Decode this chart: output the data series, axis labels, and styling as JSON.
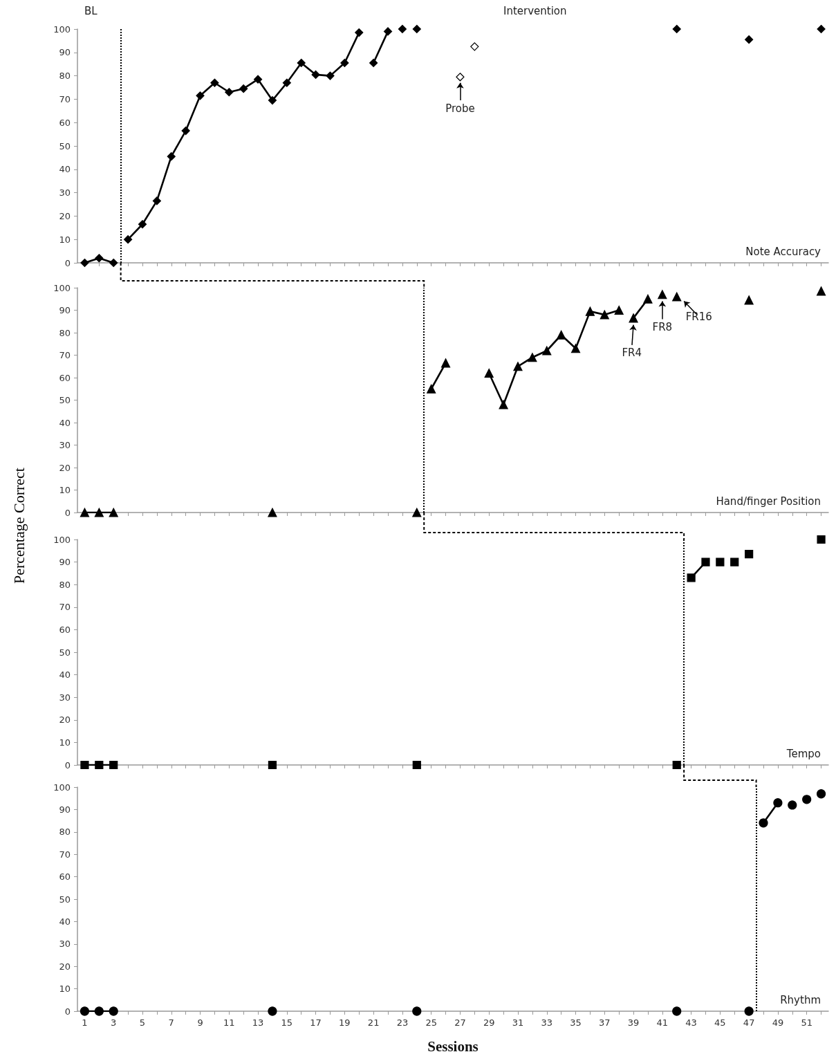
{
  "chart_data": [
    {
      "type": "line",
      "title": "Note Accuracy",
      "marker": "diamond",
      "tick_labels": "y",
      "annotations": [
        "BL",
        "Intervention",
        {
          "text": "Probe",
          "x": 27,
          "y": 79.5
        }
      ],
      "xlim": [
        0.5,
        52.5
      ],
      "ylim": [
        0,
        100
      ],
      "yticks": [
        0,
        10,
        20,
        30,
        40,
        50,
        60,
        70,
        80,
        90,
        100
      ],
      "xticks": [
        1,
        {
          "value": 2,
          "label": null
        },
        3,
        {
          "value": 4,
          "label": null
        },
        5,
        {
          "value": 6,
          "label": null
        },
        7,
        {
          "value": 8,
          "label": null
        },
        9,
        {
          "value": 10,
          "label": null
        },
        11,
        {
          "value": 12,
          "label": null
        },
        13,
        {
          "value": 14,
          "label": null
        },
        15,
        {
          "value": 16,
          "label": null
        },
        17,
        {
          "value": 18,
          "label": null
        },
        19,
        {
          "value": 20,
          "label": null
        },
        21,
        {
          "value": 22,
          "label": null
        },
        23,
        {
          "value": 24,
          "label": null
        },
        25,
        {
          "value": 26,
          "label": null
        },
        27,
        {
          "value": 28,
          "label": null
        },
        29,
        {
          "value": 30,
          "label": null
        },
        31,
        {
          "value": 32,
          "label": null
        },
        33,
        {
          "value": 34,
          "label": null
        },
        35,
        {
          "value": 36,
          "label": null
        },
        37,
        {
          "value": 38,
          "label": null
        },
        39,
        {
          "value": 40,
          "label": null
        },
        41,
        {
          "value": 42,
          "label": null
        },
        43,
        {
          "value": 44,
          "label": null
        },
        45,
        {
          "value": 46,
          "label": null
        },
        47,
        {
          "value": 48,
          "label": null
        },
        49,
        {
          "value": 50,
          "label": null
        },
        51,
        {
          "value": 52,
          "label": null
        }
      ],
      "ref_lines": [
        {
          "axis": "x",
          "value": 3.5,
          "line_style": "dotted",
          "color": "#000000"
        }
      ],
      "series": [
        {
          "type": "line",
          "color": "#000000",
          "x": [
            1,
            2,
            3
          ],
          "values": [
            0,
            2,
            0
          ]
        },
        {
          "type": "line",
          "color": "#000000",
          "x": [
            4,
            5,
            6,
            7,
            8,
            9,
            10,
            11,
            12,
            13,
            14,
            15,
            16,
            17,
            18,
            19,
            20
          ],
          "values": [
            10,
            16.5,
            26.5,
            45.5,
            56.5,
            71.5,
            77,
            73,
            74.5,
            78.5,
            69.5,
            77,
            85.5,
            80.5,
            80,
            85.5,
            98.5
          ]
        },
        {
          "type": "line",
          "color": "#000000",
          "x": [
            21,
            22
          ],
          "values": [
            85.5,
            99
          ]
        },
        {
          "type": "scatter",
          "color": "#000000",
          "x": [
            23,
            24,
            42,
            47,
            52
          ],
          "values": [
            100,
            100,
            100,
            95.5,
            100
          ]
        },
        {
          "type": "scatter",
          "color": "#ffffff",
          "x": [
            27,
            28
          ],
          "values": [
            79.5,
            92.5
          ]
        }
      ]
    },
    {
      "type": "line",
      "title": "Hand/finger Position",
      "marker": "triangle",
      "tick_labels": "y",
      "ylabel": "Percentage Correct",
      "annotations": [
        {
          "text": "FR4",
          "x": 39,
          "y": 86.5
        },
        {
          "text": "FR8",
          "x": 41,
          "y": 97
        },
        {
          "text": "FR16",
          "x": 42,
          "y": 96
        }
      ],
      "xlim": [
        0.5,
        52.5
      ],
      "ylim": [
        0,
        100
      ],
      "yticks": [
        0,
        10,
        20,
        30,
        40,
        50,
        60,
        70,
        80,
        90,
        100
      ],
      "xticks": [
        1,
        {
          "value": 2,
          "label": null
        },
        3,
        {
          "value": 4,
          "label": null
        },
        5,
        {
          "value": 6,
          "label": null
        },
        7,
        {
          "value": 8,
          "label": null
        },
        9,
        {
          "value": 10,
          "label": null
        },
        11,
        {
          "value": 12,
          "label": null
        },
        13,
        {
          "value": 14,
          "label": null
        },
        15,
        {
          "value": 16,
          "label": null
        },
        17,
        {
          "value": 18,
          "label": null
        },
        19,
        {
          "value": 20,
          "label": null
        },
        21,
        {
          "value": 22,
          "label": null
        },
        23,
        {
          "value": 24,
          "label": null
        },
        25,
        {
          "value": 26,
          "label": null
        },
        27,
        {
          "value": 28,
          "label": null
        },
        29,
        {
          "value": 30,
          "label": null
        },
        31,
        {
          "value": 32,
          "label": null
        },
        33,
        {
          "value": 34,
          "label": null
        },
        35,
        {
          "value": 36,
          "label": null
        },
        37,
        {
          "value": 38,
          "label": null
        },
        39,
        {
          "value": 40,
          "label": null
        },
        41,
        {
          "value": 42,
          "label": null
        },
        43,
        {
          "value": 44,
          "label": null
        },
        45,
        {
          "value": 46,
          "label": null
        },
        47,
        {
          "value": 48,
          "label": null
        },
        49,
        {
          "value": 50,
          "label": null
        },
        51,
        {
          "value": 52,
          "label": null
        }
      ],
      "ref_lines": [
        {
          "axis": "x",
          "value": 24.5,
          "line_style": "dotted",
          "color": "#000000"
        }
      ],
      "series": [
        {
          "type": "line",
          "color": "#000000",
          "x": [
            1,
            2,
            3
          ],
          "values": [
            0,
            0,
            0
          ]
        },
        {
          "type": "scatter",
          "color": "#000000",
          "x": [
            14,
            24
          ],
          "values": [
            0,
            0
          ]
        },
        {
          "type": "line",
          "color": "#000000",
          "x": [
            25,
            26
          ],
          "values": [
            55,
            66.5
          ]
        },
        {
          "type": "line",
          "color": "#000000",
          "x": [
            29,
            30,
            31,
            32,
            33,
            34,
            35,
            36,
            37,
            38
          ],
          "values": [
            62,
            48,
            65,
            69,
            72,
            79,
            73,
            89.5,
            88,
            90
          ]
        },
        {
          "type": "line",
          "color": "#000000",
          "x": [
            39,
            40
          ],
          "values": [
            86.5,
            95
          ]
        },
        {
          "type": "scatter",
          "color": "#000000",
          "x": [
            41,
            42,
            47,
            52
          ],
          "values": [
            97,
            96,
            94.5,
            98.5
          ]
        }
      ]
    },
    {
      "type": "line",
      "title": "Tempo",
      "marker": "square",
      "tick_labels": "y",
      "xlim": [
        0.5,
        52.5
      ],
      "ylim": [
        0,
        100
      ],
      "yticks": [
        0,
        10,
        20,
        30,
        40,
        50,
        60,
        70,
        80,
        90,
        100
      ],
      "xticks": [
        1,
        {
          "value": 2,
          "label": null
        },
        3,
        {
          "value": 4,
          "label": null
        },
        5,
        {
          "value": 6,
          "label": null
        },
        7,
        {
          "value": 8,
          "label": null
        },
        9,
        {
          "value": 10,
          "label": null
        },
        11,
        {
          "value": 12,
          "label": null
        },
        13,
        {
          "value": 14,
          "label": null
        },
        15,
        {
          "value": 16,
          "label": null
        },
        17,
        {
          "value": 18,
          "label": null
        },
        19,
        {
          "value": 20,
          "label": null
        },
        21,
        {
          "value": 22,
          "label": null
        },
        23,
        {
          "value": 24,
          "label": null
        },
        25,
        {
          "value": 26,
          "label": null
        },
        27,
        {
          "value": 28,
          "label": null
        },
        29,
        {
          "value": 30,
          "label": null
        },
        31,
        {
          "value": 32,
          "label": null
        },
        33,
        {
          "value": 34,
          "label": null
        },
        35,
        {
          "value": 36,
          "label": null
        },
        37,
        {
          "value": 38,
          "label": null
        },
        39,
        {
          "value": 40,
          "label": null
        },
        41,
        {
          "value": 42,
          "label": null
        },
        43,
        {
          "value": 44,
          "label": null
        },
        45,
        {
          "value": 46,
          "label": null
        },
        47,
        {
          "value": 48,
          "label": null
        },
        49,
        {
          "value": 50,
          "label": null
        },
        51,
        {
          "value": 52,
          "label": null
        }
      ],
      "ref_lines": [
        {
          "axis": "x",
          "value": 42.5,
          "line_style": "dotted",
          "color": "#000000"
        }
      ],
      "series": [
        {
          "type": "line",
          "color": "#000000",
          "x": [
            1,
            2,
            3
          ],
          "values": [
            0,
            0,
            0
          ]
        },
        {
          "type": "scatter",
          "color": "#000000",
          "x": [
            14,
            24,
            42
          ],
          "values": [
            0,
            0,
            0
          ]
        },
        {
          "type": "line",
          "color": "#000000",
          "x": [
            43,
            44
          ],
          "values": [
            83,
            90
          ]
        },
        {
          "type": "scatter",
          "color": "#000000",
          "x": [
            45,
            46,
            47,
            52
          ],
          "values": [
            90,
            90,
            93.5,
            100
          ]
        }
      ]
    },
    {
      "type": "line",
      "title": "Rhythm",
      "marker": "circle",
      "xlabel": "Sessions",
      "xlim": [
        0.5,
        52.5
      ],
      "ylim": [
        0,
        100
      ],
      "yticks": [
        0,
        10,
        20,
        30,
        40,
        50,
        60,
        70,
        80,
        90,
        100
      ],
      "xticks": [
        1,
        {
          "value": 2,
          "label": null
        },
        3,
        {
          "value": 4,
          "label": null
        },
        5,
        {
          "value": 6,
          "label": null
        },
        7,
        {
          "value": 8,
          "label": null
        },
        9,
        {
          "value": 10,
          "label": null
        },
        11,
        {
          "value": 12,
          "label": null
        },
        13,
        {
          "value": 14,
          "label": null
        },
        15,
        {
          "value": 16,
          "label": null
        },
        17,
        {
          "value": 18,
          "label": null
        },
        19,
        {
          "value": 20,
          "label": null
        },
        21,
        {
          "value": 22,
          "label": null
        },
        23,
        {
          "value": 24,
          "label": null
        },
        25,
        {
          "value": 26,
          "label": null
        },
        27,
        {
          "value": 28,
          "label": null
        },
        29,
        {
          "value": 30,
          "label": null
        },
        31,
        {
          "value": 32,
          "label": null
        },
        33,
        {
          "value": 34,
          "label": null
        },
        35,
        {
          "value": 36,
          "label": null
        },
        37,
        {
          "value": 38,
          "label": null
        },
        39,
        {
          "value": 40,
          "label": null
        },
        41,
        {
          "value": 42,
          "label": null
        },
        43,
        {
          "value": 44,
          "label": null
        },
        45,
        {
          "value": 46,
          "label": null
        },
        47,
        {
          "value": 48,
          "label": null
        },
        49,
        {
          "value": 50,
          "label": null
        },
        51,
        {
          "value": 52,
          "label": null
        }
      ],
      "ref_lines": [
        {
          "axis": "x",
          "value": 47.5,
          "line_style": "dotted",
          "color": "#000000"
        }
      ],
      "series": [
        {
          "type": "line",
          "color": "#000000",
          "x": [
            1,
            2,
            3
          ],
          "values": [
            0,
            0,
            0
          ]
        },
        {
          "type": "scatter",
          "color": "#000000",
          "x": [
            14,
            24,
            42,
            47
          ],
          "values": [
            0,
            0,
            0,
            0
          ]
        },
        {
          "type": "line",
          "color": "#000000",
          "x": [
            48,
            49
          ],
          "values": [
            84,
            93
          ]
        },
        {
          "type": "scatter",
          "color": "#000000",
          "x": [
            50,
            51,
            52
          ],
          "values": [
            92,
            94.5,
            97
          ]
        }
      ]
    }
  ]
}
